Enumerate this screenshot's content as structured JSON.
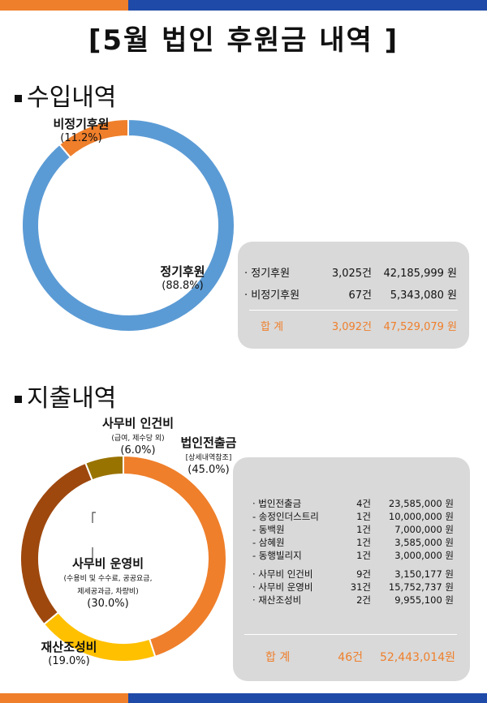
{
  "title": "[5월 법인 후원금 내역 ]",
  "income": {
    "heading": "수입내역",
    "chart_data": {
      "type": "pie",
      "categories": [
        "정기후원",
        "비정기후원"
      ],
      "values": [
        88.8,
        11.2
      ],
      "labels": [
        "(88.8%)",
        "(11.2%)"
      ],
      "colors": [
        "#5b9bd5",
        "#ef7f2b"
      ]
    },
    "rows": [
      {
        "label": "· 정기후원",
        "count": "3,025건",
        "amount": "42,185,999 원"
      },
      {
        "label": "· 비정기후원",
        "count": "67건",
        "amount": "5,343,080 원"
      }
    ],
    "total": {
      "label": "합  계",
      "count": "3,092건",
      "amount": "47,529,079 원"
    }
  },
  "expense": {
    "heading": "지출내역",
    "chart_data": {
      "type": "pie",
      "categories": [
        "법인전출금",
        "재산조성비",
        "사무비 운영비",
        "사무비 인건비"
      ],
      "values": [
        45.0,
        19.0,
        30.0,
        6.0
      ],
      "labels": [
        "(45.0%)",
        "(19.0%)",
        "(30.0%)",
        "(6.0%)"
      ],
      "colors": [
        "#ef7f2b",
        "#ffc000",
        "#9e480e",
        "#997300"
      ]
    },
    "notes": {
      "transfer": "[상세내역참조]",
      "labor": "(급여, 제수당 외)",
      "ops_1": "(수용비 및 수수료, 공공요금,",
      "ops_2": "제세공과금, 차량비)"
    },
    "rows": [
      {
        "label": "· 법인전출금",
        "count": "4건",
        "amount": "23,585,000 원"
      },
      {
        "label": "-      송정인더스트리",
        "count": "1건",
        "amount": "10,000,000 원"
      },
      {
        "label": "-      동백원",
        "count": "1건",
        "amount": "7,000,000 원"
      },
      {
        "label": "-      삼혜원",
        "count": "1건",
        "amount": "3,585,000 원"
      },
      {
        "label": "-      동행빌리지",
        "count": "1건",
        "amount": "3,000,000 원"
      },
      {
        "label": "· 사무비 인건비",
        "count": "9건",
        "amount": "3,150,177 원"
      },
      {
        "label": "· 사무비 운영비",
        "count": "31건",
        "amount": "15,752,737 원"
      },
      {
        "label": "· 재산조성비",
        "count": "2건",
        "amount": "9,955,100 원"
      }
    ],
    "total": {
      "label": "합  계",
      "count": "46건",
      "amount": "52,443,014원"
    }
  }
}
